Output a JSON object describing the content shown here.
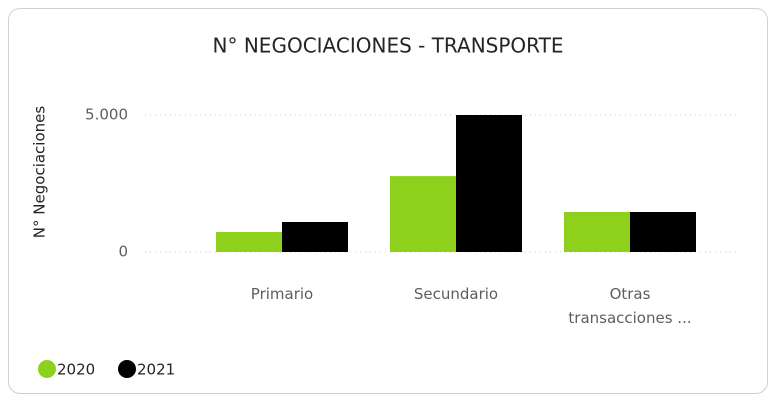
{
  "chart_data": {
    "type": "bar",
    "title": "N° NEGOCIACIONES - TRANSPORTE",
    "y_label": "N° Negociaciones",
    "categories": [
      "Primario",
      "Secundario",
      "Otras transacciones ..."
    ],
    "series": [
      {
        "name": "2020",
        "color": "#8dd11c",
        "values": [
          730,
          2770,
          1460
        ]
      },
      {
        "name": "2021",
        "color": "#000000",
        "values": [
          1095,
          5000,
          1460
        ]
      }
    ],
    "ylim": [
      0,
      5000
    ],
    "yticks": [
      0,
      {
        "value": 5000,
        "label": "5.000"
      }
    ],
    "grid": true
  }
}
